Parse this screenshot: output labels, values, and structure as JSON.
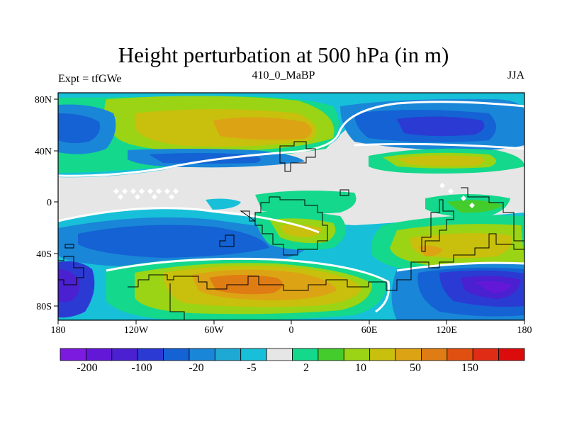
{
  "title": "Height perturbation at 500 hPa (in m)",
  "subtitle_left": "Expt = tfGWe",
  "subtitle_center": "410_0_MaBP",
  "subtitle_right": "JJA",
  "x_ticks": [
    "180",
    "120W",
    "60W",
    "0",
    "60E",
    "120E",
    "180"
  ],
  "y_ticks": [
    "80N",
    "40N",
    "0",
    "40S",
    "80S"
  ],
  "colorbar": {
    "colors": [
      "#7d1ae0",
      "#6318d8",
      "#4a20d0",
      "#2b3ad2",
      "#1462d4",
      "#1a86d8",
      "#1ea8d4",
      "#17c0d8",
      "#e6e6e6",
      "#14d88c",
      "#44cc2c",
      "#9ad414",
      "#c8c00c",
      "#dca414",
      "#e07c14",
      "#e05010",
      "#e02c14",
      "#dc0c0c"
    ],
    "labels": [
      "-200",
      "-100",
      "-20",
      "-5",
      "2",
      "10",
      "50",
      "150"
    ]
  },
  "palette": {
    "white": "#ffffff",
    "neutral": "#e6e6e6",
    "coast": "#000000"
  }
}
